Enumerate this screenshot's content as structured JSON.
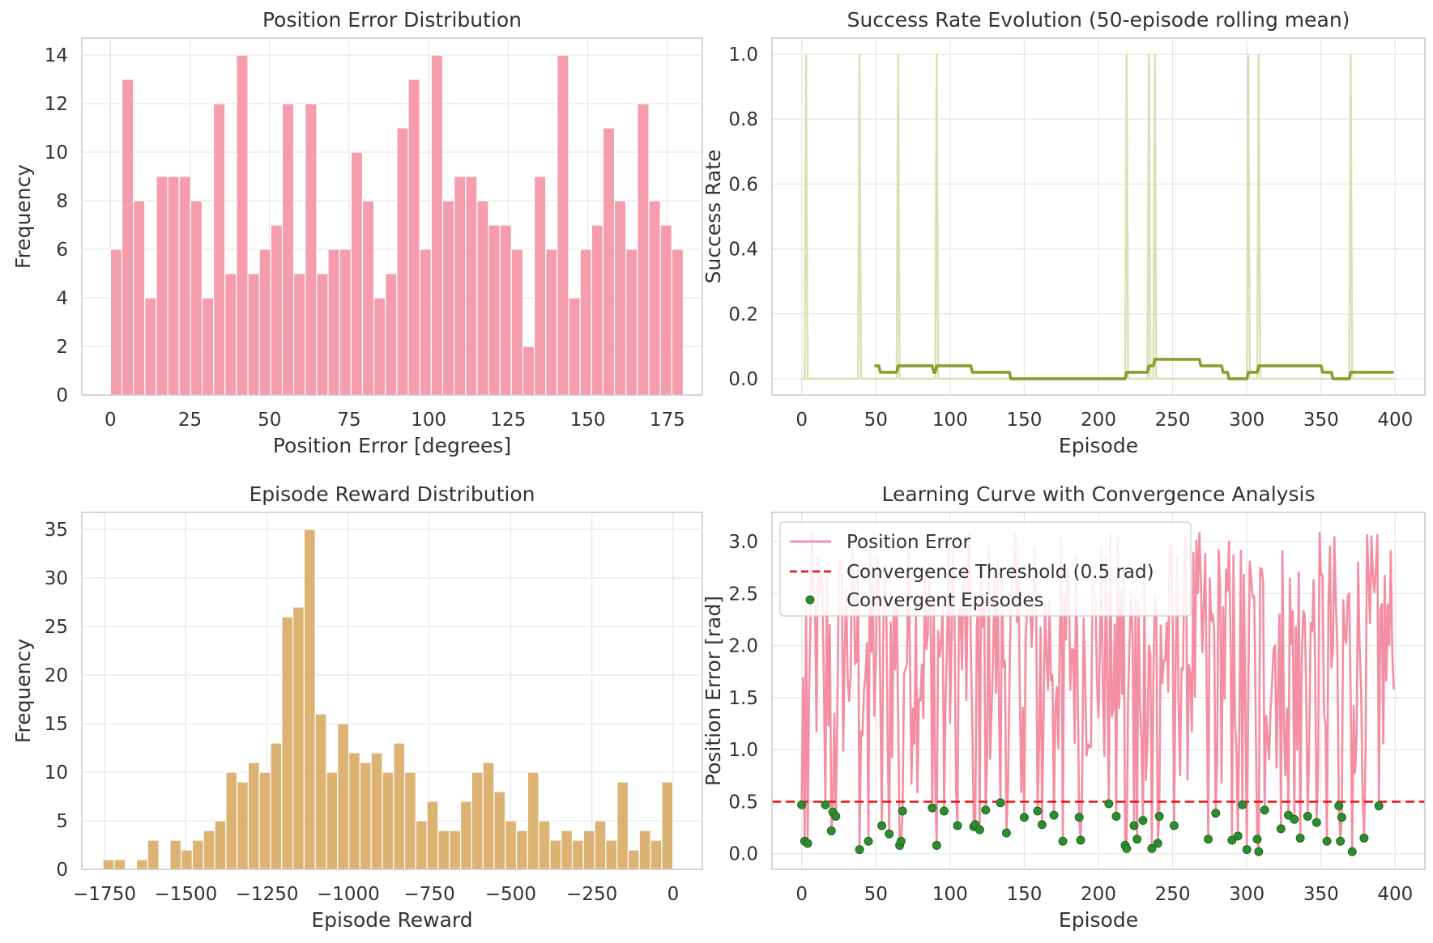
{
  "chart_data": [
    {
      "type": "bar",
      "title": "Position Error Distribution",
      "xlabel": "Position Error [degrees]",
      "ylabel": "Frequency",
      "xlim": [
        -9,
        186
      ],
      "ylim": [
        0,
        14.7
      ],
      "xticks": [
        0,
        25,
        50,
        75,
        100,
        125,
        150,
        175
      ],
      "yticks": [
        0,
        2,
        4,
        6,
        8,
        10,
        12,
        14
      ],
      "color": "#f48ea2",
      "bin_start": 0,
      "bin_width": 3.6,
      "values": [
        6,
        13,
        8,
        4,
        9,
        9,
        9,
        8,
        4,
        12,
        5,
        14,
        5,
        6,
        7,
        12,
        5,
        12,
        5,
        6,
        6,
        10,
        8,
        4,
        5,
        11,
        13,
        6,
        14,
        8,
        9,
        9,
        8,
        7,
        7,
        6,
        2,
        9,
        6,
        14,
        4,
        6,
        7,
        11,
        8,
        6,
        12,
        8,
        7,
        6
      ]
    },
    {
      "type": "line",
      "title": "Success Rate Evolution (50-episode rolling mean)",
      "xlabel": "Episode",
      "ylabel": "Success Rate",
      "xlim": [
        -20,
        420
      ],
      "ylim": [
        -0.05,
        1.05
      ],
      "xticks": [
        0,
        50,
        100,
        150,
        200,
        250,
        300,
        350,
        400
      ],
      "yticks": [
        0.0,
        0.2,
        0.4,
        0.6,
        0.8,
        1.0
      ],
      "ytick_labels": [
        "0.0",
        "0.2",
        "0.4",
        "0.6",
        "0.8",
        "1.0"
      ],
      "n_episodes": 400,
      "success_episodes": [
        3,
        39,
        65,
        91,
        219,
        234,
        238,
        301,
        308,
        370
      ],
      "raw_color": "#d8e0b4",
      "rolling_color": "#8a9e2e",
      "rolling_window": 50
    },
    {
      "type": "bar",
      "title": "Episode Reward Distribution",
      "xlabel": "Episode Reward",
      "ylabel": "Frequency",
      "xlim": [
        -1820,
        90
      ],
      "ylim": [
        0,
        36.75
      ],
      "xticks": [
        -1750,
        -1500,
        -1250,
        -1000,
        -750,
        -500,
        -250,
        0
      ],
      "xtick_labels": [
        "−1750",
        "−1500",
        "−1250",
        "−1000",
        "−750",
        "−500",
        "−250",
        "0"
      ],
      "yticks": [
        0,
        5,
        10,
        15,
        20,
        25,
        30,
        35
      ],
      "color": "#d8a860",
      "bin_start": -1755,
      "bin_width": 34.4,
      "values": [
        1,
        1,
        0,
        1,
        3,
        0,
        3,
        2,
        3,
        4,
        5,
        10,
        9,
        11,
        10,
        13,
        26,
        27,
        35,
        16,
        10,
        15,
        12,
        11,
        12,
        10,
        13,
        10,
        5,
        7,
        4,
        4,
        7,
        10,
        11,
        8,
        5,
        4,
        10,
        5,
        3,
        4,
        3,
        4,
        5,
        3,
        9,
        2,
        4,
        3,
        9
      ]
    },
    {
      "type": "line",
      "title": "Learning Curve with Convergence Analysis",
      "xlabel": "Episode",
      "ylabel": "Position Error [rad]",
      "xlim": [
        -20,
        420
      ],
      "ylim": [
        -0.15,
        3.28
      ],
      "xticks": [
        0,
        50,
        100,
        150,
        200,
        250,
        300,
        350,
        400
      ],
      "yticks": [
        0.0,
        0.5,
        1.0,
        1.5,
        2.0,
        2.5,
        3.0
      ],
      "ytick_labels": [
        "0.0",
        "0.5",
        "1.0",
        "1.5",
        "2.0",
        "2.5",
        "3.0"
      ],
      "threshold": 0.5,
      "line_color": "#f48ea2",
      "threshold_color": "#e8191c",
      "point_color": "#2e8b2e",
      "legend": [
        "Position Error",
        "Convergence Threshold (0.5 rad)",
        "Convergent Episodes"
      ],
      "convergent_points": [
        [
          0,
          0.47
        ],
        [
          2,
          0.12
        ],
        [
          4,
          0.1
        ],
        [
          16,
          0.47
        ],
        [
          20,
          0.22
        ],
        [
          21,
          0.4
        ],
        [
          23,
          0.36
        ],
        [
          39,
          0.04
        ],
        [
          45,
          0.12
        ],
        [
          54,
          0.27
        ],
        [
          59,
          0.19
        ],
        [
          66,
          0.08
        ],
        [
          67,
          0.12
        ],
        [
          68,
          0.41
        ],
        [
          88,
          0.44
        ],
        [
          91,
          0.08
        ],
        [
          96,
          0.41
        ],
        [
          105,
          0.27
        ],
        [
          116,
          0.26
        ],
        [
          117,
          0.28
        ],
        [
          120,
          0.23
        ],
        [
          124,
          0.42
        ],
        [
          134,
          0.49
        ],
        [
          138,
          0.2
        ],
        [
          150,
          0.35
        ],
        [
          159,
          0.41
        ],
        [
          162,
          0.28
        ],
        [
          170,
          0.37
        ],
        [
          176,
          0.12
        ],
        [
          187,
          0.35
        ],
        [
          188,
          0.13
        ],
        [
          207,
          0.48
        ],
        [
          212,
          0.36
        ],
        [
          218,
          0.08
        ],
        [
          219,
          0.05
        ],
        [
          224,
          0.27
        ],
        [
          226,
          0.14
        ],
        [
          230,
          0.32
        ],
        [
          236,
          0.05
        ],
        [
          240,
          0.1
        ],
        [
          241,
          0.36
        ],
        [
          251,
          0.27
        ],
        [
          274,
          0.14
        ],
        [
          279,
          0.39
        ],
        [
          290,
          0.13
        ],
        [
          294,
          0.17
        ],
        [
          297,
          0.47
        ],
        [
          300,
          0.04
        ],
        [
          307,
          0.14
        ],
        [
          308,
          0.02
        ],
        [
          312,
          0.42
        ],
        [
          323,
          0.24
        ],
        [
          328,
          0.37
        ],
        [
          332,
          0.33
        ],
        [
          336,
          0.15
        ],
        [
          341,
          0.36
        ],
        [
          347,
          0.3
        ],
        [
          354,
          0.12
        ],
        [
          362,
          0.46
        ],
        [
          363,
          0.12
        ],
        [
          364,
          0.35
        ],
        [
          371,
          0.02
        ],
        [
          379,
          0.15
        ],
        [
          389,
          0.46
        ]
      ]
    }
  ]
}
